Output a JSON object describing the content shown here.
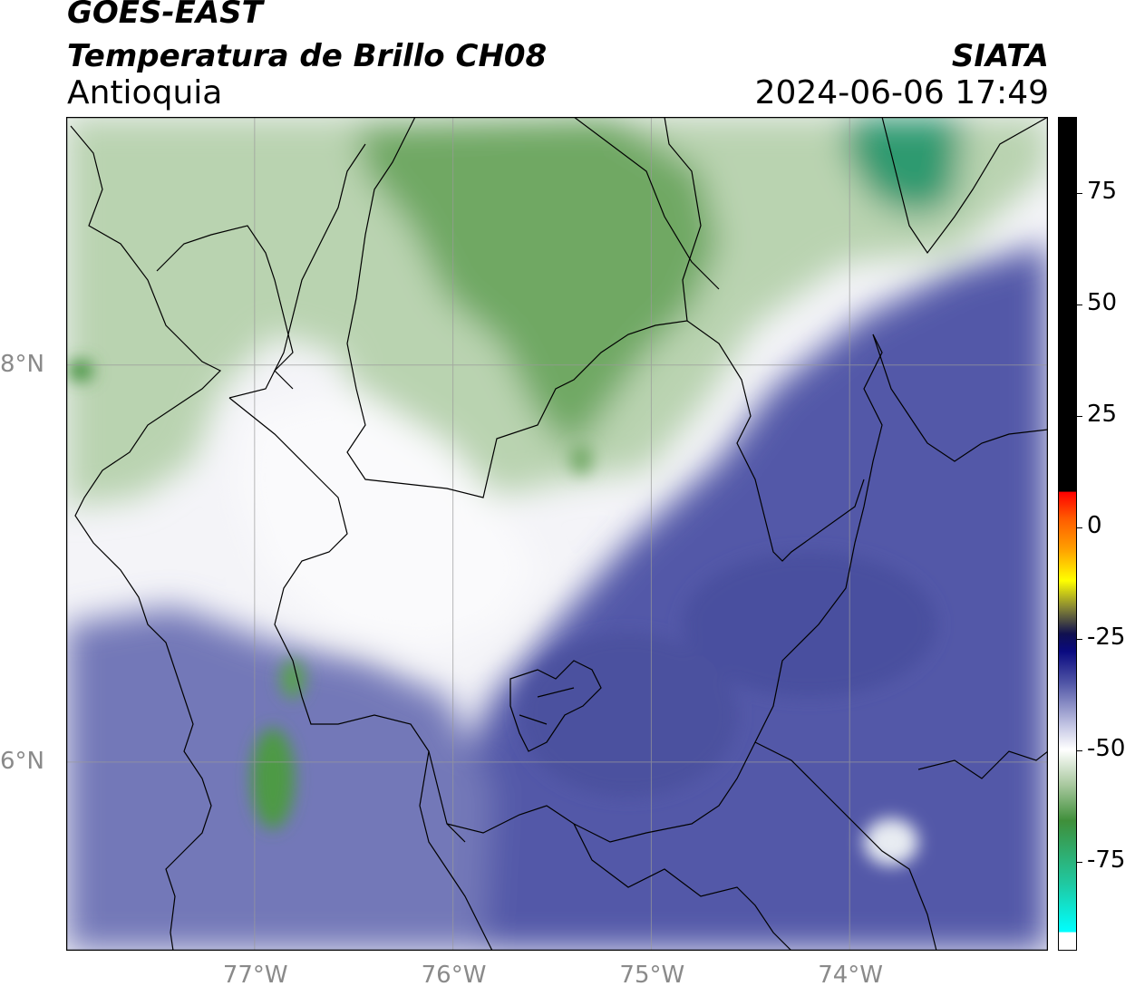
{
  "header": {
    "satellite": "GOES-EAST",
    "product": "Temperatura de Brillo CH08",
    "region": "Antioquia",
    "organization": "SIATA",
    "datetime": "2024-06-06 17:49"
  },
  "map": {
    "lon_range": [
      -77.95,
      -73.0
    ],
    "lat_range": [
      5.05,
      9.25
    ],
    "lon_ticks": [
      {
        "value": -77,
        "label": "77°W"
      },
      {
        "value": -76,
        "label": "76°W"
      },
      {
        "value": -75,
        "label": "75°W"
      },
      {
        "value": -74,
        "label": "74°W"
      }
    ],
    "lat_ticks": [
      {
        "value": 8,
        "label": "8°N"
      },
      {
        "value": 6,
        "label": "6°N"
      }
    ],
    "grid": true,
    "colors": {
      "deep_blue": "#5055a6",
      "light_blue": "#8f94c9",
      "white": "#f7f7fb",
      "light_green": "#c9dcc2",
      "mid_green": "#8db886",
      "dark_green": "#3f8f3a",
      "teal": "#3aa77a"
    }
  },
  "colorbar": {
    "range": [
      -95,
      92
    ],
    "ticks": [
      {
        "value": 75,
        "label": "75"
      },
      {
        "value": 50,
        "label": "50"
      },
      {
        "value": 25,
        "label": "25"
      },
      {
        "value": 0,
        "label": "0"
      },
      {
        "value": -25,
        "label": "-25"
      },
      {
        "value": -50,
        "label": "-50"
      },
      {
        "value": -75,
        "label": "-75"
      }
    ],
    "stops": [
      {
        "value": 92,
        "color": "#000000"
      },
      {
        "value": 8,
        "color": "#000000"
      },
      {
        "value": 7.9,
        "color": "#ff0000"
      },
      {
        "value": 2,
        "color": "#ff5a00"
      },
      {
        "value": -5,
        "color": "#ffa000"
      },
      {
        "value": -12,
        "color": "#ffff00"
      },
      {
        "value": -18,
        "color": "#888833"
      },
      {
        "value": -24,
        "color": "#101050"
      },
      {
        "value": -28,
        "color": "#0a0a80"
      },
      {
        "value": -35,
        "color": "#5055a6"
      },
      {
        "value": -45,
        "color": "#c8cae6"
      },
      {
        "value": -50,
        "color": "#ffffff"
      },
      {
        "value": -58,
        "color": "#a8c89e"
      },
      {
        "value": -66,
        "color": "#3f8f3a"
      },
      {
        "value": -80,
        "color": "#20c8a0"
      },
      {
        "value": -91,
        "color": "#00ffff"
      },
      {
        "value": -91.1,
        "color": "#ffffff"
      },
      {
        "value": -95,
        "color": "#ffffff"
      }
    ]
  }
}
